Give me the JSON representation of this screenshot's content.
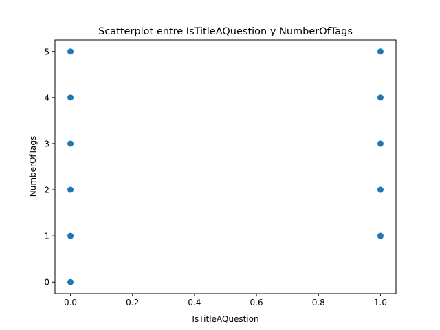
{
  "chart_data": {
    "type": "scatter",
    "title": "Scatterplot entre IsTitleAQuestion y NumberOfTags",
    "xlabel": "IsTitleAQuestion",
    "ylabel": "NumberOfTags",
    "xlim": [
      -0.05,
      1.05
    ],
    "ylim": [
      -0.25,
      5.25
    ],
    "xticks": [
      0.0,
      0.2,
      0.4,
      0.6,
      0.8,
      1.0
    ],
    "xtick_labels": [
      "0.0",
      "0.2",
      "0.4",
      "0.6",
      "0.8",
      "1.0"
    ],
    "yticks": [
      0,
      1,
      2,
      3,
      4,
      5
    ],
    "ytick_labels": [
      "0",
      "1",
      "2",
      "3",
      "4",
      "5"
    ],
    "grid": false,
    "point_color": "#1f77b4",
    "points": [
      {
        "x": 0,
        "y": 0
      },
      {
        "x": 0,
        "y": 1
      },
      {
        "x": 0,
        "y": 2
      },
      {
        "x": 0,
        "y": 3
      },
      {
        "x": 0,
        "y": 4
      },
      {
        "x": 0,
        "y": 5
      },
      {
        "x": 1,
        "y": 1
      },
      {
        "x": 1,
        "y": 2
      },
      {
        "x": 1,
        "y": 3
      },
      {
        "x": 1,
        "y": 4
      },
      {
        "x": 1,
        "y": 5
      }
    ]
  }
}
